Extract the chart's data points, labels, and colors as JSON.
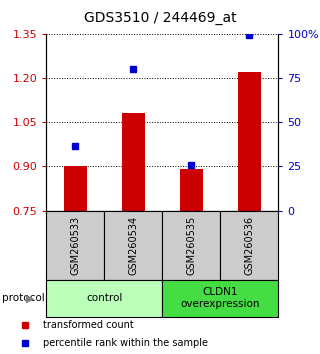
{
  "title": "GDS3510 / 244469_at",
  "samples": [
    "GSM260533",
    "GSM260534",
    "GSM260535",
    "GSM260536"
  ],
  "bar_values": [
    0.9,
    1.08,
    0.89,
    1.22
  ],
  "dot_values": [
    0.97,
    1.23,
    0.905,
    1.345
  ],
  "bar_base": 0.75,
  "ylim_left": [
    0.75,
    1.35
  ],
  "ylim_right": [
    0,
    100
  ],
  "yticks_left": [
    0.75,
    0.9,
    1.05,
    1.2,
    1.35
  ],
  "yticks_right": [
    0,
    25,
    50,
    75,
    100
  ],
  "ytick_labels_right": [
    "0",
    "25",
    "50",
    "75",
    "100%"
  ],
  "bar_color": "#cc0000",
  "dot_color": "#0000cc",
  "protocol_groups": [
    {
      "label": "control",
      "start": 0,
      "end": 2,
      "color": "#bbffbb"
    },
    {
      "label": "CLDN1\noverexpression",
      "start": 2,
      "end": 4,
      "color": "#44dd44"
    }
  ],
  "protocol_label": "protocol",
  "legend_bar_label": "transformed count",
  "legend_dot_label": "percentile rank within the sample",
  "bar_width": 0.4,
  "sample_box_color": "#cccccc"
}
